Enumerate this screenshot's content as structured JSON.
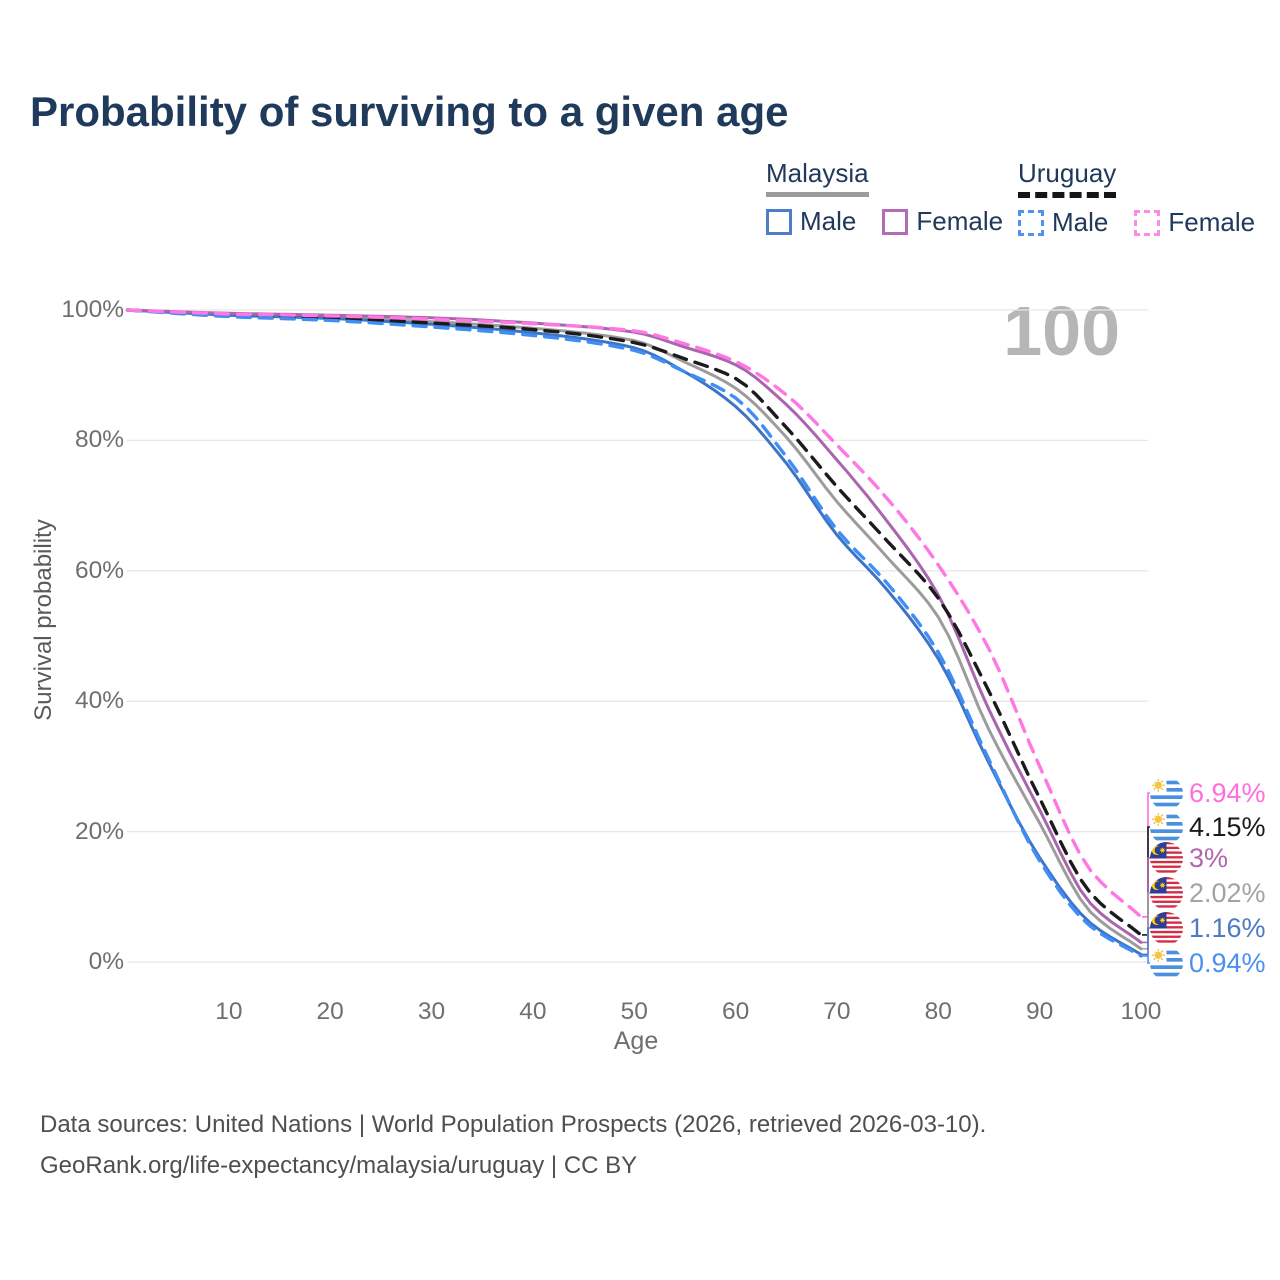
{
  "title": "Probability of surviving to a given age",
  "watermark_age": "100",
  "legend": {
    "groups": [
      {
        "country": "Malaysia",
        "line_style": "solid",
        "line_color": "#9c9c9c",
        "items": [
          {
            "label": "Male",
            "swatch_color": "#4d7ec6",
            "swatch_style": "solid"
          },
          {
            "label": "Female",
            "swatch_color": "#b26db6",
            "swatch_style": "solid"
          }
        ]
      },
      {
        "country": "Uruguay",
        "line_style": "dashed",
        "line_color": "#151515",
        "items": [
          {
            "label": "Male",
            "swatch_color": "#5191f2",
            "swatch_style": "dashed"
          },
          {
            "label": "Female",
            "swatch_color": "#ff8ae4",
            "swatch_style": "dashed"
          }
        ]
      }
    ]
  },
  "chart_data": {
    "type": "line",
    "title": "Probability of surviving to a given age",
    "xlabel": "Age",
    "ylabel": "Survival probability",
    "xlim": [
      0,
      100
    ],
    "ylim": [
      0,
      100
    ],
    "x_ticks": [
      10,
      20,
      30,
      40,
      50,
      60,
      70,
      80,
      90,
      100
    ],
    "y_ticks": [
      "0%",
      "20%",
      "40%",
      "60%",
      "80%",
      "100%"
    ],
    "grid": "horizontal",
    "legend_position": "top-right",
    "x": [
      0,
      10,
      20,
      30,
      40,
      50,
      55,
      60,
      65,
      70,
      75,
      80,
      85,
      90,
      95,
      100
    ],
    "series": [
      {
        "name": "Malaysia Both sexes",
        "country": "Malaysia",
        "sex": "Both",
        "color": "#9c9c9c",
        "dash": "solid",
        "values": [
          100,
          99.3,
          98.9,
          98.2,
          97.2,
          95.3,
          92,
          88,
          80.5,
          70.6,
          62,
          52.9,
          35.6,
          21.3,
          7.7,
          2.02
        ],
        "end_label": "2.02%",
        "end_label_color": "#a3a3a3"
      },
      {
        "name": "Malaysia Male",
        "country": "Malaysia",
        "sex": "Male",
        "color": "#3e74c6",
        "dash": "solid",
        "values": [
          100,
          99.2,
          98.7,
          97.8,
          96.5,
          94.2,
          90.5,
          85.2,
          76.5,
          65.5,
          57,
          46.5,
          30.5,
          16,
          6,
          1.16
        ],
        "end_label": "1.16%",
        "end_label_color": "#4d7ac2"
      },
      {
        "name": "Malaysia Female",
        "country": "Malaysia",
        "sex": "Female",
        "color": "#a965ad",
        "dash": "solid",
        "values": [
          100,
          99.5,
          99.2,
          98.8,
          98,
          96.6,
          94.3,
          91.6,
          85.5,
          77,
          67.5,
          56.3,
          38.7,
          23.3,
          9,
          3
        ],
        "end_label": "3%",
        "end_label_color": "#b266ae"
      },
      {
        "name": "Uruguay Both sexes",
        "country": "Uruguay",
        "sex": "Both",
        "color": "#1b1b1b",
        "dash": "dashed",
        "values": [
          100,
          99.2,
          98.8,
          98,
          97,
          95,
          92.5,
          89.5,
          82,
          72.9,
          64.5,
          55.8,
          41.5,
          25.1,
          10.6,
          4.15
        ],
        "end_label": "4.15%",
        "end_label_color": "#1a1a1a"
      },
      {
        "name": "Uruguay Male",
        "country": "Uruguay",
        "sex": "Male",
        "color": "#3f8df5",
        "dash": "dashed",
        "values": [
          100,
          99,
          98.4,
          97.4,
          96.1,
          93.8,
          90.5,
          86.5,
          77.5,
          66.3,
          58,
          47.5,
          31,
          15.5,
          5.5,
          0.94
        ],
        "end_label": "0.94%",
        "end_label_color": "#4b8ff2"
      },
      {
        "name": "Uruguay Female",
        "country": "Uruguay",
        "sex": "Female",
        "color": "#ff77e3",
        "dash": "dashed",
        "values": [
          100,
          99.4,
          99.1,
          98.6,
          97.9,
          96.8,
          94.8,
          92.1,
          87,
          79.3,
          71,
          60.9,
          48,
          30,
          14.1,
          6.94
        ],
        "end_label": "6.94%",
        "end_label_color": "#ff6ee0"
      }
    ]
  },
  "footer": {
    "line1": "Data sources: United Nations | World Population Prospects (2026, retrieved 2026-03-10).",
    "line2": "GeoRank.org/life-expectancy/malaysia/uruguay | CC BY"
  }
}
